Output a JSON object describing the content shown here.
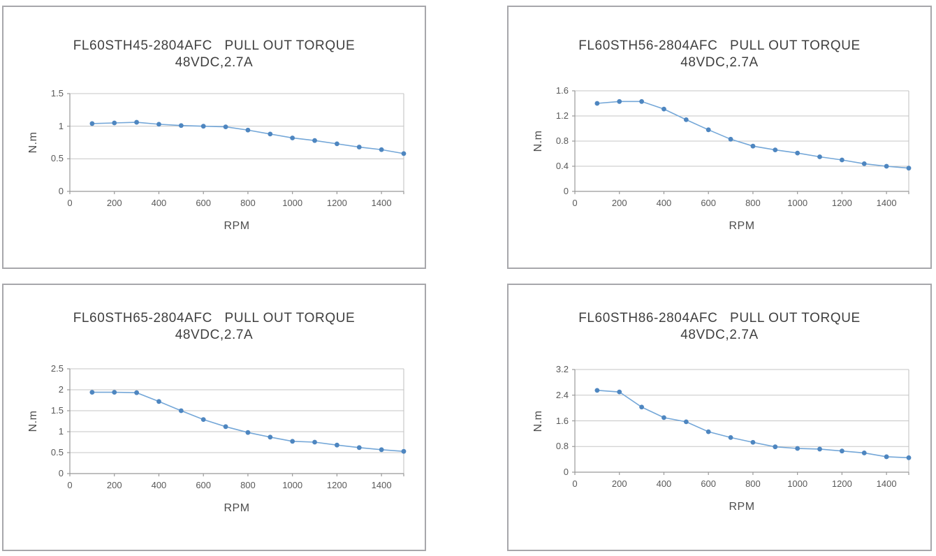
{
  "page": {
    "background": "#ffffff",
    "description_labels": {
      "torque_unit": "N.m",
      "speed_unit": "RPM"
    }
  },
  "colors": {
    "line": "#74a7d8",
    "marker": "#4e86c0",
    "gridline": "#c6c6c6",
    "plot_border": "#bfbfbf",
    "axis": "#999999",
    "panel_border": "#a7a7ab",
    "title_text": "#3f3f3f",
    "tick_text": "#595959"
  },
  "chart_data": [
    {
      "type": "line",
      "title": "FL60STH45-2804AFC   PULL OUT TORQUE",
      "subtitle": "48VDC,2.7A",
      "xlabel": "RPM",
      "ylabel": "N.m",
      "x": [
        100,
        200,
        300,
        400,
        500,
        600,
        700,
        800,
        900,
        1000,
        1100,
        1200,
        1300,
        1400,
        1500
      ],
      "values": [
        1.04,
        1.05,
        1.06,
        1.03,
        1.01,
        1.0,
        0.99,
        0.94,
        0.88,
        0.82,
        0.78,
        0.73,
        0.68,
        0.64,
        0.58
      ],
      "xlim": [
        0,
        1500
      ],
      "ylim": [
        0,
        1.5
      ],
      "yticks": [
        0,
        0.5,
        1,
        1.5
      ],
      "xticks": [
        0,
        200,
        400,
        600,
        800,
        1000,
        1200,
        1400
      ],
      "grid": true,
      "legend": "none"
    },
    {
      "type": "line",
      "title": "FL60STH56-2804AFC   PULL OUT TORQUE",
      "subtitle": "48VDC,2.7A",
      "xlabel": "RPM",
      "ylabel": "N.m",
      "x": [
        100,
        200,
        300,
        400,
        500,
        600,
        700,
        800,
        900,
        1000,
        1100,
        1200,
        1300,
        1400,
        1500
      ],
      "values": [
        1.4,
        1.43,
        1.43,
        1.31,
        1.14,
        0.98,
        0.83,
        0.72,
        0.66,
        0.61,
        0.55,
        0.5,
        0.44,
        0.4,
        0.37
      ],
      "xlim": [
        0,
        1500
      ],
      "ylim": [
        0,
        1.6
      ],
      "yticks": [
        0,
        0.4,
        0.8,
        1.2,
        1.6
      ],
      "xticks": [
        0,
        200,
        400,
        600,
        800,
        1000,
        1200,
        1400
      ],
      "grid": true,
      "legend": "none"
    },
    {
      "type": "line",
      "title": "FL60STH65-2804AFC   PULL OUT TORQUE",
      "subtitle": "48VDC,2.7A",
      "xlabel": "RPM",
      "ylabel": "N.m",
      "x": [
        100,
        200,
        300,
        400,
        500,
        600,
        700,
        800,
        900,
        1000,
        1100,
        1200,
        1300,
        1400,
        1500
      ],
      "values": [
        1.94,
        1.94,
        1.93,
        1.72,
        1.5,
        1.29,
        1.12,
        0.98,
        0.87,
        0.77,
        0.75,
        0.68,
        0.62,
        0.57,
        0.53
      ],
      "xlim": [
        0,
        1500
      ],
      "ylim": [
        0,
        2.5
      ],
      "yticks": [
        0,
        0.5,
        1,
        1.5,
        2,
        2.5
      ],
      "xticks": [
        0,
        200,
        400,
        600,
        800,
        1000,
        1200,
        1400
      ],
      "grid": true,
      "legend": "none"
    },
    {
      "type": "line",
      "title": "FL60STH86-2804AFC   PULL OUT TORQUE",
      "subtitle": "48VDC,2.7A",
      "xlabel": "RPM",
      "ylabel": "N.m",
      "x": [
        100,
        200,
        300,
        400,
        500,
        600,
        700,
        800,
        900,
        1000,
        1100,
        1200,
        1300,
        1400,
        1500
      ],
      "values": [
        2.55,
        2.5,
        2.03,
        1.7,
        1.57,
        1.26,
        1.08,
        0.93,
        0.79,
        0.74,
        0.72,
        0.66,
        0.6,
        0.48,
        0.45
      ],
      "xlim": [
        0,
        1500
      ],
      "ylim": [
        0,
        3.2
      ],
      "yticks": [
        0,
        0.8,
        1.6,
        2.4,
        3.2
      ],
      "xticks": [
        0,
        200,
        400,
        600,
        800,
        1000,
        1200,
        1400
      ],
      "grid": true,
      "legend": "none"
    }
  ]
}
